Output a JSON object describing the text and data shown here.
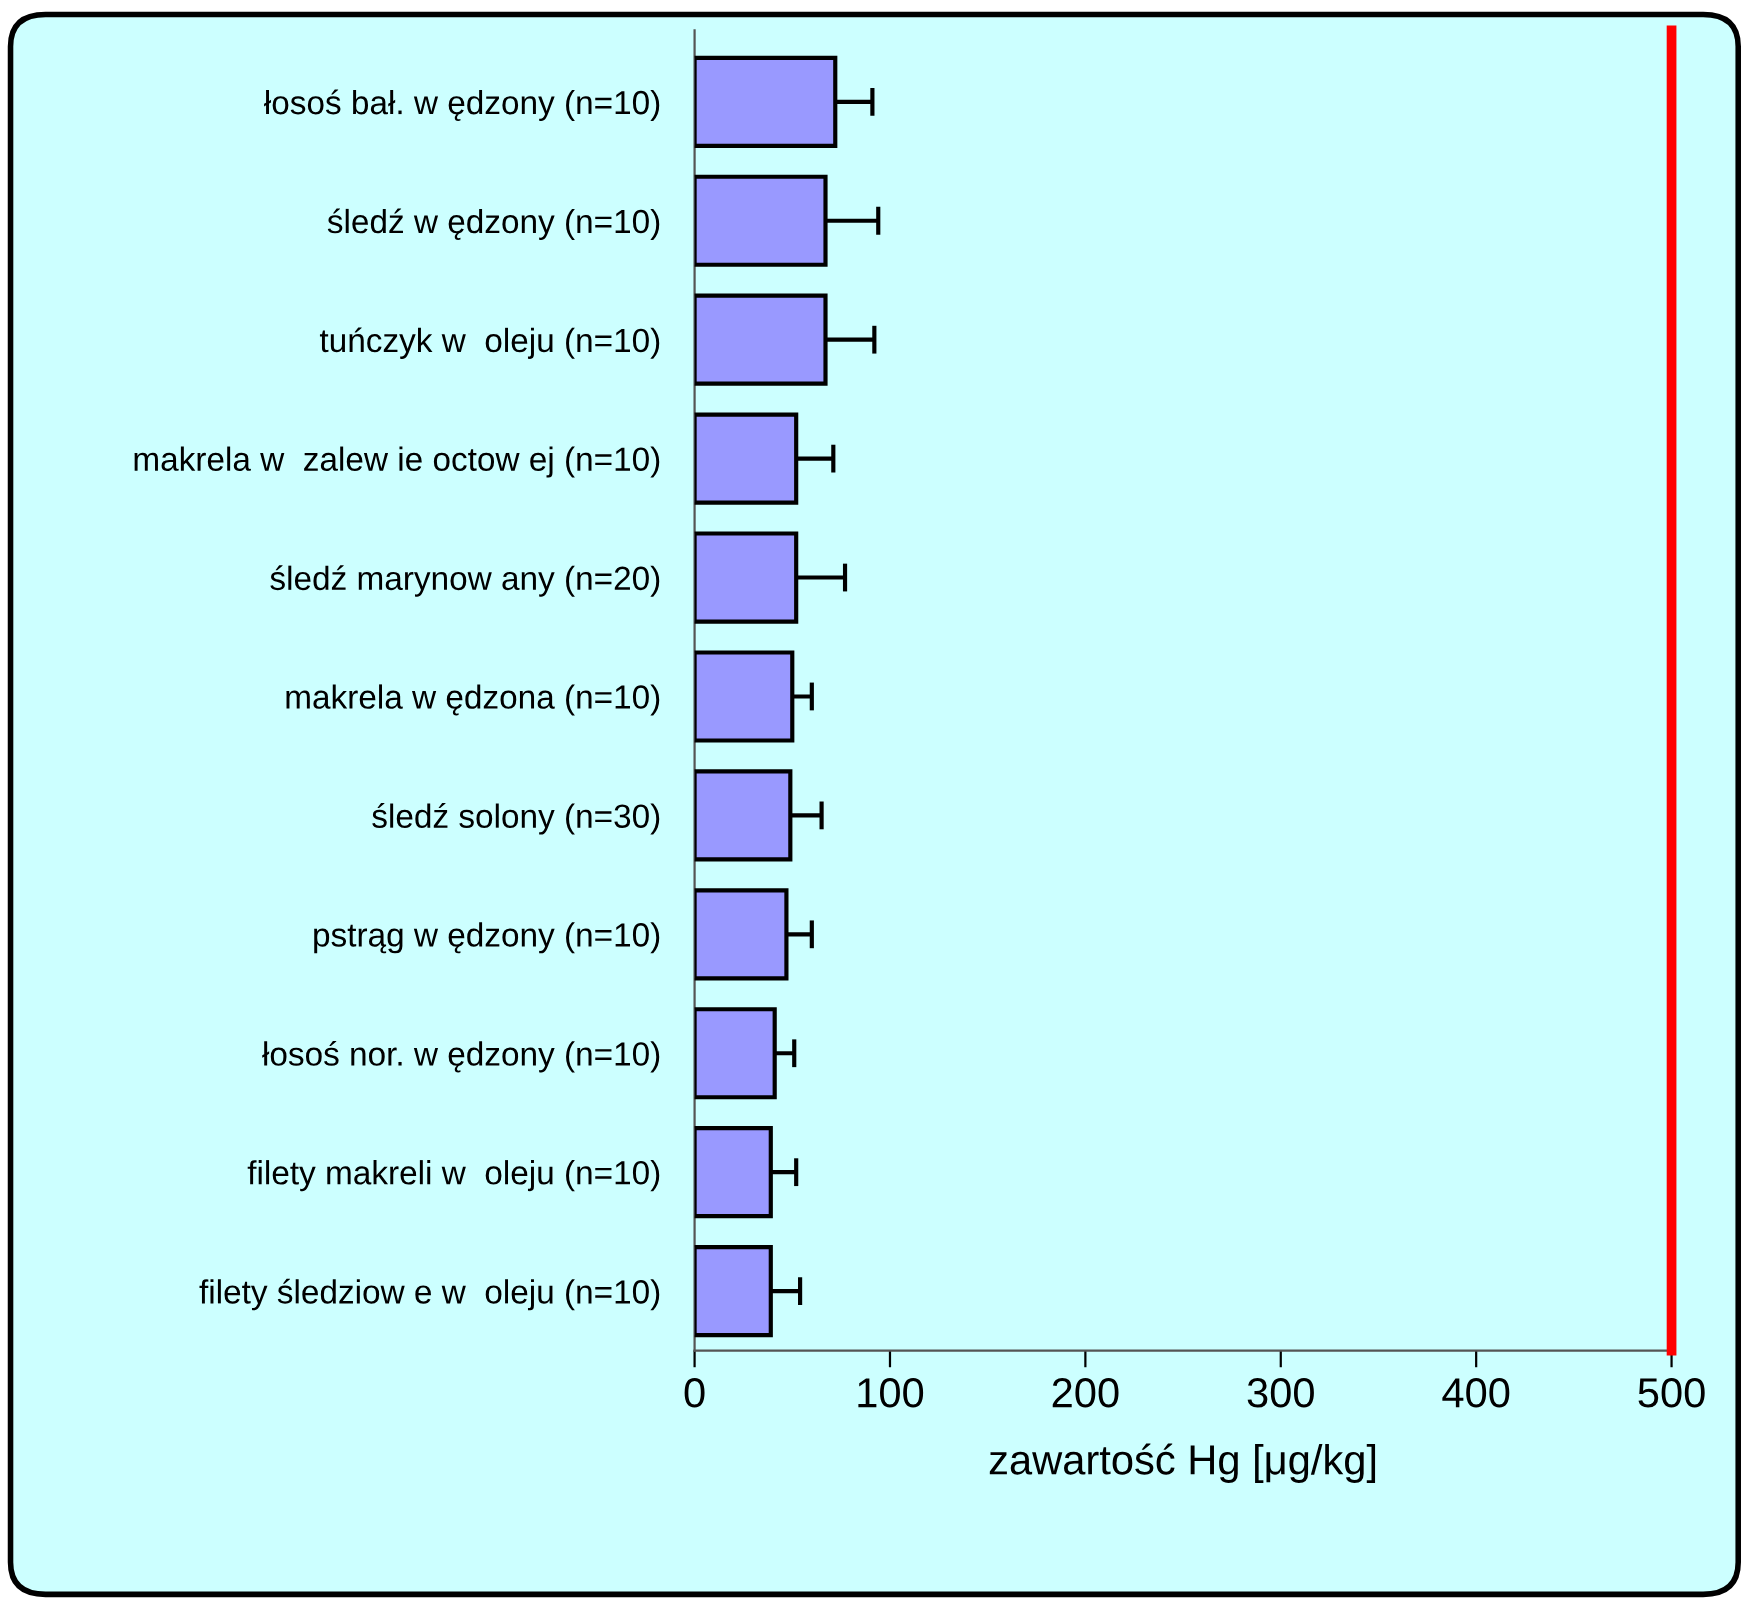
{
  "chart_data": {
    "type": "bar",
    "orientation": "horizontal",
    "categories": [
      "łosoś bał. w ędzony (n=10)",
      "śledź w ędzony (n=10)",
      "tuńczyk w  oleju (n=10)",
      "makrela w  zalew ie octow ej (n=10)",
      "śledź marynow any (n=20)",
      "makrela w ędzona (n=10)",
      "śledź solony (n=30)",
      "pstrąg w ędzony (n=10)",
      "łosoś nor. w ędzony (n=10)",
      "filety makreli w  oleju (n=10)",
      "filety śledziow e w  oleju (n=10)"
    ],
    "values": [
      72,
      67,
      67,
      52,
      52,
      50,
      49,
      47,
      41,
      39,
      39
    ],
    "errors": [
      19,
      27,
      25,
      19,
      25,
      10,
      16,
      13,
      10,
      13,
      15
    ],
    "color": "#9999ff",
    "xlabel": "zawartość Hg [μg/kg]",
    "xlim": [
      0,
      500
    ],
    "xticks": [
      0,
      100,
      200,
      300,
      400,
      500
    ],
    "ref_lines": [
      {
        "axis": "x",
        "value": 500,
        "color": "#ff0000"
      }
    ],
    "grid": false,
    "legend": false
  }
}
